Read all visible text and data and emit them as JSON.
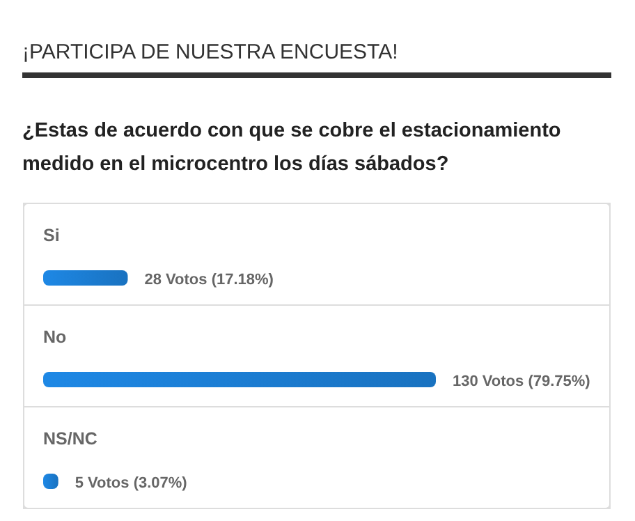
{
  "chart_data": {
    "type": "bar",
    "orientation": "horizontal",
    "title": "¡PARTICIPA DE NUESTRA ENCUESTA!",
    "subtitle": "¿Estas de acuerdo con que se cobre el estacionamiento medido en el microcentro los días sábados?",
    "categories": [
      "Si",
      "No",
      "NS/NC"
    ],
    "values": [
      28,
      130,
      5
    ],
    "value_labels": [
      "28 Votos (17.18%)",
      "130 Votos (79.75%)",
      "5 Votos (3.07%)"
    ],
    "color": "#1e88e5"
  }
}
